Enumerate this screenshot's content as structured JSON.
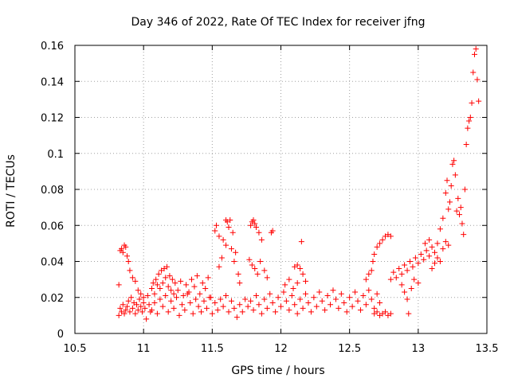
{
  "chart_data": {
    "type": "scatter",
    "title": "Day 346 of 2022, Rate Of TEC Index for receiver jfng",
    "xlabel": "GPS time / hours",
    "ylabel": "ROTI / TECUs",
    "xlim": [
      10.5,
      13.5
    ],
    "ylim": [
      0,
      0.16
    ],
    "xticks": [
      "10.5",
      "11",
      "11.5",
      "12",
      "12.5",
      "13",
      "13.5"
    ],
    "yticks": [
      "0",
      "0.02",
      "0.04",
      "0.06",
      "0.08",
      "0.1",
      "0.12",
      "0.14",
      "0.16"
    ],
    "grid": true,
    "marker": "+",
    "color": "#ff0000",
    "series": [
      {
        "name": "ROTI",
        "points": [
          [
            10.82,
            0.027
          ],
          [
            10.83,
            0.046
          ],
          [
            10.84,
            0.047
          ],
          [
            10.85,
            0.045
          ],
          [
            10.86,
            0.049
          ],
          [
            10.87,
            0.048
          ],
          [
            10.88,
            0.043
          ],
          [
            10.89,
            0.04
          ],
          [
            10.9,
            0.035
          ],
          [
            10.92,
            0.031
          ],
          [
            10.94,
            0.029
          ],
          [
            10.96,
            0.024
          ],
          [
            10.98,
            0.022
          ],
          [
            11.0,
            0.02
          ],
          [
            10.82,
            0.01
          ],
          [
            10.83,
            0.014
          ],
          [
            10.84,
            0.012
          ],
          [
            10.85,
            0.016
          ],
          [
            10.86,
            0.011
          ],
          [
            10.87,
            0.013
          ],
          [
            10.88,
            0.015
          ],
          [
            10.89,
            0.018
          ],
          [
            10.9,
            0.012
          ],
          [
            10.91,
            0.02
          ],
          [
            10.92,
            0.014
          ],
          [
            10.93,
            0.017
          ],
          [
            10.94,
            0.011
          ],
          [
            10.95,
            0.016
          ],
          [
            10.96,
            0.013
          ],
          [
            10.97,
            0.019
          ],
          [
            10.98,
            0.015
          ],
          [
            10.99,
            0.012
          ],
          [
            11.0,
            0.017
          ],
          [
            11.01,
            0.014
          ],
          [
            11.02,
            0.008
          ],
          [
            11.03,
            0.021
          ],
          [
            11.04,
            0.016
          ],
          [
            11.05,
            0.012
          ],
          [
            11.06,
            0.025
          ],
          [
            11.07,
            0.028
          ],
          [
            11.08,
            0.022
          ],
          [
            11.09,
            0.03
          ],
          [
            11.1,
            0.027
          ],
          [
            11.11,
            0.033
          ],
          [
            11.12,
            0.025
          ],
          [
            11.13,
            0.035
          ],
          [
            11.14,
            0.028
          ],
          [
            11.15,
            0.036
          ],
          [
            11.16,
            0.031
          ],
          [
            11.17,
            0.037
          ],
          [
            11.18,
            0.026
          ],
          [
            11.19,
            0.032
          ],
          [
            11.2,
            0.024
          ],
          [
            11.21,
            0.03
          ],
          [
            11.22,
            0.022
          ],
          [
            11.23,
            0.028
          ],
          [
            11.06,
            0.013
          ],
          [
            11.08,
            0.017
          ],
          [
            11.1,
            0.011
          ],
          [
            11.12,
            0.019
          ],
          [
            11.14,
            0.015
          ],
          [
            11.16,
            0.021
          ],
          [
            11.18,
            0.012
          ],
          [
            11.2,
            0.018
          ],
          [
            11.22,
            0.014
          ],
          [
            11.24,
            0.02
          ],
          [
            11.26,
            0.01
          ],
          [
            11.28,
            0.016
          ],
          [
            11.3,
            0.013
          ],
          [
            11.32,
            0.022
          ],
          [
            11.34,
            0.017
          ],
          [
            11.36,
            0.011
          ],
          [
            11.38,
            0.019
          ],
          [
            11.4,
            0.015
          ],
          [
            11.25,
            0.024
          ],
          [
            11.27,
            0.029
          ],
          [
            11.29,
            0.021
          ],
          [
            11.31,
            0.027
          ],
          [
            11.33,
            0.023
          ],
          [
            11.35,
            0.03
          ],
          [
            11.37,
            0.026
          ],
          [
            11.39,
            0.032
          ],
          [
            11.41,
            0.022
          ],
          [
            11.43,
            0.028
          ],
          [
            11.45,
            0.025
          ],
          [
            11.47,
            0.031
          ],
          [
            11.49,
            0.02
          ],
          [
            11.42,
            0.012
          ],
          [
            11.44,
            0.018
          ],
          [
            11.46,
            0.014
          ],
          [
            11.48,
            0.02
          ],
          [
            11.5,
            0.011
          ],
          [
            11.52,
            0.017
          ],
          [
            11.54,
            0.013
          ],
          [
            11.56,
            0.019
          ],
          [
            11.58,
            0.015
          ],
          [
            11.6,
            0.021
          ],
          [
            11.62,
            0.012
          ],
          [
            11.64,
            0.018
          ],
          [
            11.66,
            0.014
          ],
          [
            11.68,
            0.009
          ],
          [
            11.7,
            0.016
          ],
          [
            11.72,
            0.012
          ],
          [
            11.74,
            0.019
          ],
          [
            11.76,
            0.015
          ],
          [
            11.52,
            0.057
          ],
          [
            11.53,
            0.06
          ],
          [
            11.55,
            0.054
          ],
          [
            11.58,
            0.052
          ],
          [
            11.6,
            0.063
          ],
          [
            11.61,
            0.062
          ],
          [
            11.62,
            0.059
          ],
          [
            11.63,
            0.063
          ],
          [
            11.65,
            0.056
          ],
          [
            11.67,
            0.045
          ],
          [
            11.55,
            0.037
          ],
          [
            11.57,
            0.042
          ],
          [
            11.6,
            0.049
          ],
          [
            11.64,
            0.047
          ],
          [
            11.66,
            0.04
          ],
          [
            11.69,
            0.033
          ],
          [
            11.7,
            0.028
          ],
          [
            11.78,
            0.06
          ],
          [
            11.79,
            0.062
          ],
          [
            11.8,
            0.063
          ],
          [
            11.81,
            0.061
          ],
          [
            11.82,
            0.059
          ],
          [
            11.84,
            0.056
          ],
          [
            11.86,
            0.052
          ],
          [
            11.93,
            0.056
          ],
          [
            11.94,
            0.057
          ],
          [
            11.77,
            0.041
          ],
          [
            11.79,
            0.038
          ],
          [
            11.81,
            0.036
          ],
          [
            11.83,
            0.033
          ],
          [
            11.85,
            0.04
          ],
          [
            11.88,
            0.035
          ],
          [
            11.9,
            0.031
          ],
          [
            11.78,
            0.018
          ],
          [
            11.8,
            0.013
          ],
          [
            11.82,
            0.021
          ],
          [
            11.84,
            0.016
          ],
          [
            11.86,
            0.011
          ],
          [
            11.88,
            0.019
          ],
          [
            11.9,
            0.014
          ],
          [
            11.92,
            0.022
          ],
          [
            11.94,
            0.017
          ],
          [
            11.96,
            0.012
          ],
          [
            11.98,
            0.02
          ],
          [
            12.0,
            0.015
          ],
          [
            12.02,
            0.023
          ],
          [
            12.04,
            0.018
          ],
          [
            12.06,
            0.013
          ],
          [
            12.08,
            0.021
          ],
          [
            12.1,
            0.037
          ],
          [
            12.12,
            0.038
          ],
          [
            12.14,
            0.036
          ],
          [
            12.15,
            0.051
          ],
          [
            12.03,
            0.027
          ],
          [
            12.06,
            0.03
          ],
          [
            12.09,
            0.025
          ],
          [
            12.12,
            0.028
          ],
          [
            12.16,
            0.033
          ],
          [
            12.18,
            0.029
          ],
          [
            12.1,
            0.016
          ],
          [
            12.12,
            0.011
          ],
          [
            12.14,
            0.019
          ],
          [
            12.16,
            0.014
          ],
          [
            12.18,
            0.022
          ],
          [
            12.2,
            0.017
          ],
          [
            12.22,
            0.012
          ],
          [
            12.24,
            0.02
          ],
          [
            12.26,
            0.015
          ],
          [
            12.28,
            0.023
          ],
          [
            12.3,
            0.018
          ],
          [
            12.32,
            0.013
          ],
          [
            12.34,
            0.021
          ],
          [
            12.36,
            0.016
          ],
          [
            12.38,
            0.024
          ],
          [
            12.4,
            0.019
          ],
          [
            12.42,
            0.014
          ],
          [
            12.44,
            0.022
          ],
          [
            12.46,
            0.017
          ],
          [
            12.48,
            0.012
          ],
          [
            12.5,
            0.02
          ],
          [
            12.52,
            0.015
          ],
          [
            12.54,
            0.023
          ],
          [
            12.56,
            0.018
          ],
          [
            12.58,
            0.013
          ],
          [
            12.6,
            0.021
          ],
          [
            12.62,
            0.016
          ],
          [
            12.64,
            0.024
          ],
          [
            12.66,
            0.019
          ],
          [
            12.68,
            0.014
          ],
          [
            12.7,
            0.022
          ],
          [
            12.72,
            0.017
          ],
          [
            12.62,
            0.03
          ],
          [
            12.64,
            0.033
          ],
          [
            12.66,
            0.035
          ],
          [
            12.67,
            0.04
          ],
          [
            12.68,
            0.044
          ],
          [
            12.7,
            0.048
          ],
          [
            12.72,
            0.05
          ],
          [
            12.74,
            0.052
          ],
          [
            12.76,
            0.054
          ],
          [
            12.78,
            0.055
          ],
          [
            12.8,
            0.054
          ],
          [
            12.68,
            0.011
          ],
          [
            12.7,
            0.012
          ],
          [
            12.72,
            0.01
          ],
          [
            12.74,
            0.011
          ],
          [
            12.76,
            0.012
          ],
          [
            12.78,
            0.01
          ],
          [
            12.8,
            0.011
          ],
          [
            12.8,
            0.03
          ],
          [
            12.82,
            0.034
          ],
          [
            12.84,
            0.031
          ],
          [
            12.86,
            0.036
          ],
          [
            12.88,
            0.033
          ],
          [
            12.9,
            0.038
          ],
          [
            12.92,
            0.035
          ],
          [
            12.94,
            0.04
          ],
          [
            12.96,
            0.037
          ],
          [
            12.98,
            0.042
          ],
          [
            13.0,
            0.039
          ],
          [
            13.02,
            0.044
          ],
          [
            13.04,
            0.041
          ],
          [
            13.06,
            0.046
          ],
          [
            13.08,
            0.043
          ],
          [
            13.1,
            0.048
          ],
          [
            13.12,
            0.045
          ],
          [
            13.14,
            0.05
          ],
          [
            12.88,
            0.027
          ],
          [
            12.9,
            0.023
          ],
          [
            12.92,
            0.019
          ],
          [
            12.93,
            0.011
          ],
          [
            12.95,
            0.025
          ],
          [
            12.97,
            0.03
          ],
          [
            13.0,
            0.028
          ],
          [
            13.05,
            0.05
          ],
          [
            13.08,
            0.052
          ],
          [
            13.1,
            0.036
          ],
          [
            13.12,
            0.039
          ],
          [
            13.14,
            0.042
          ],
          [
            13.16,
            0.04
          ],
          [
            13.18,
            0.047
          ],
          [
            13.2,
            0.051
          ],
          [
            13.22,
            0.049
          ],
          [
            13.16,
            0.058
          ],
          [
            13.18,
            0.064
          ],
          [
            13.2,
            0.078
          ],
          [
            13.21,
            0.085
          ],
          [
            13.22,
            0.069
          ],
          [
            13.23,
            0.073
          ],
          [
            13.24,
            0.082
          ],
          [
            13.25,
            0.094
          ],
          [
            13.26,
            0.096
          ],
          [
            13.27,
            0.088
          ],
          [
            13.28,
            0.068
          ],
          [
            13.29,
            0.075
          ],
          [
            13.3,
            0.066
          ],
          [
            13.31,
            0.07
          ],
          [
            13.32,
            0.061
          ],
          [
            13.33,
            0.055
          ],
          [
            13.34,
            0.08
          ],
          [
            13.35,
            0.105
          ],
          [
            13.36,
            0.114
          ],
          [
            13.37,
            0.118
          ],
          [
            13.38,
            0.12
          ],
          [
            13.39,
            0.128
          ],
          [
            13.4,
            0.145
          ],
          [
            13.41,
            0.155
          ],
          [
            13.42,
            0.158
          ],
          [
            13.43,
            0.141
          ],
          [
            13.44,
            0.129
          ]
        ]
      }
    ]
  }
}
